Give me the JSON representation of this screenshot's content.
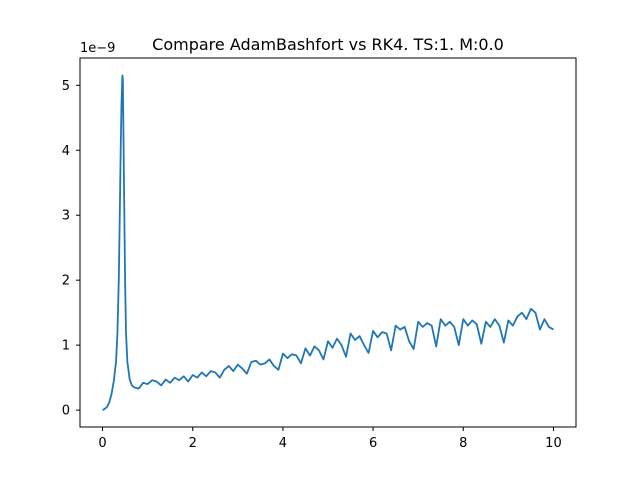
{
  "chart_data": {
    "type": "line",
    "title": "Compare AdamBashfort vs RK4. TS:1. M:0.0",
    "xlabel": "",
    "ylabel": "",
    "y_offset_label": "1e−9",
    "xlim": [
      -0.5,
      10.5
    ],
    "ylim": [
      -0.26,
      5.42
    ],
    "x_ticks": [
      0,
      2,
      4,
      6,
      8,
      10
    ],
    "x_tick_labels": [
      "0",
      "2",
      "4",
      "6",
      "8",
      "10"
    ],
    "y_ticks": [
      0,
      1,
      2,
      3,
      4,
      5
    ],
    "y_tick_labels": [
      "0",
      "1",
      "2",
      "3",
      "4",
      "5"
    ],
    "grid": false,
    "legend": "none",
    "series": [
      {
        "color": "#1f77b4",
        "x": [
          0.0,
          0.05,
          0.1,
          0.15,
          0.2,
          0.25,
          0.3,
          0.33,
          0.36,
          0.38,
          0.4,
          0.42,
          0.44,
          0.45,
          0.46,
          0.48,
          0.5,
          0.52,
          0.55,
          0.6,
          0.65,
          0.7,
          0.75,
          0.8,
          0.9,
          1.0,
          1.1,
          1.2,
          1.3,
          1.4,
          1.5,
          1.6,
          1.7,
          1.8,
          1.9,
          2.0,
          2.1,
          2.2,
          2.3,
          2.4,
          2.5,
          2.6,
          2.7,
          2.8,
          2.9,
          3.0,
          3.1,
          3.2,
          3.3,
          3.4,
          3.5,
          3.6,
          3.7,
          3.8,
          3.9,
          4.0,
          4.1,
          4.2,
          4.3,
          4.4,
          4.5,
          4.6,
          4.7,
          4.8,
          4.9,
          5.0,
          5.1,
          5.2,
          5.3,
          5.4,
          5.5,
          5.6,
          5.7,
          5.8,
          5.9,
          6.0,
          6.1,
          6.2,
          6.3,
          6.4,
          6.5,
          6.6,
          6.7,
          6.8,
          6.9,
          7.0,
          7.1,
          7.2,
          7.3,
          7.4,
          7.5,
          7.6,
          7.7,
          7.8,
          7.9,
          8.0,
          8.1,
          8.2,
          8.3,
          8.4,
          8.5,
          8.6,
          8.7,
          8.8,
          8.9,
          9.0,
          9.1,
          9.2,
          9.3,
          9.4,
          9.5,
          9.6,
          9.7,
          9.8,
          9.9,
          10.0
        ],
        "y": [
          0.0,
          0.02,
          0.05,
          0.12,
          0.25,
          0.45,
          0.75,
          1.2,
          2.0,
          2.9,
          3.9,
          4.7,
          5.15,
          5.1,
          4.5,
          3.2,
          2.0,
          1.2,
          0.75,
          0.48,
          0.38,
          0.35,
          0.34,
          0.33,
          0.42,
          0.4,
          0.46,
          0.44,
          0.38,
          0.47,
          0.42,
          0.5,
          0.46,
          0.52,
          0.44,
          0.54,
          0.5,
          0.58,
          0.52,
          0.6,
          0.58,
          0.5,
          0.62,
          0.68,
          0.6,
          0.7,
          0.64,
          0.56,
          0.74,
          0.76,
          0.7,
          0.72,
          0.78,
          0.68,
          0.62,
          0.87,
          0.8,
          0.86,
          0.84,
          0.72,
          0.95,
          0.84,
          0.98,
          0.92,
          0.78,
          1.06,
          0.96,
          1.1,
          1.0,
          0.82,
          1.18,
          1.08,
          1.14,
          1.0,
          0.88,
          1.22,
          1.12,
          1.2,
          1.18,
          0.92,
          1.3,
          1.24,
          1.28,
          1.06,
          0.94,
          1.36,
          1.28,
          1.34,
          1.3,
          0.98,
          1.4,
          1.3,
          1.36,
          1.28,
          1.0,
          1.4,
          1.3,
          1.38,
          1.32,
          1.02,
          1.36,
          1.28,
          1.4,
          1.3,
          1.04,
          1.38,
          1.3,
          1.44,
          1.5,
          1.4,
          1.56,
          1.5,
          1.24,
          1.4,
          1.28,
          1.24
        ]
      }
    ]
  }
}
